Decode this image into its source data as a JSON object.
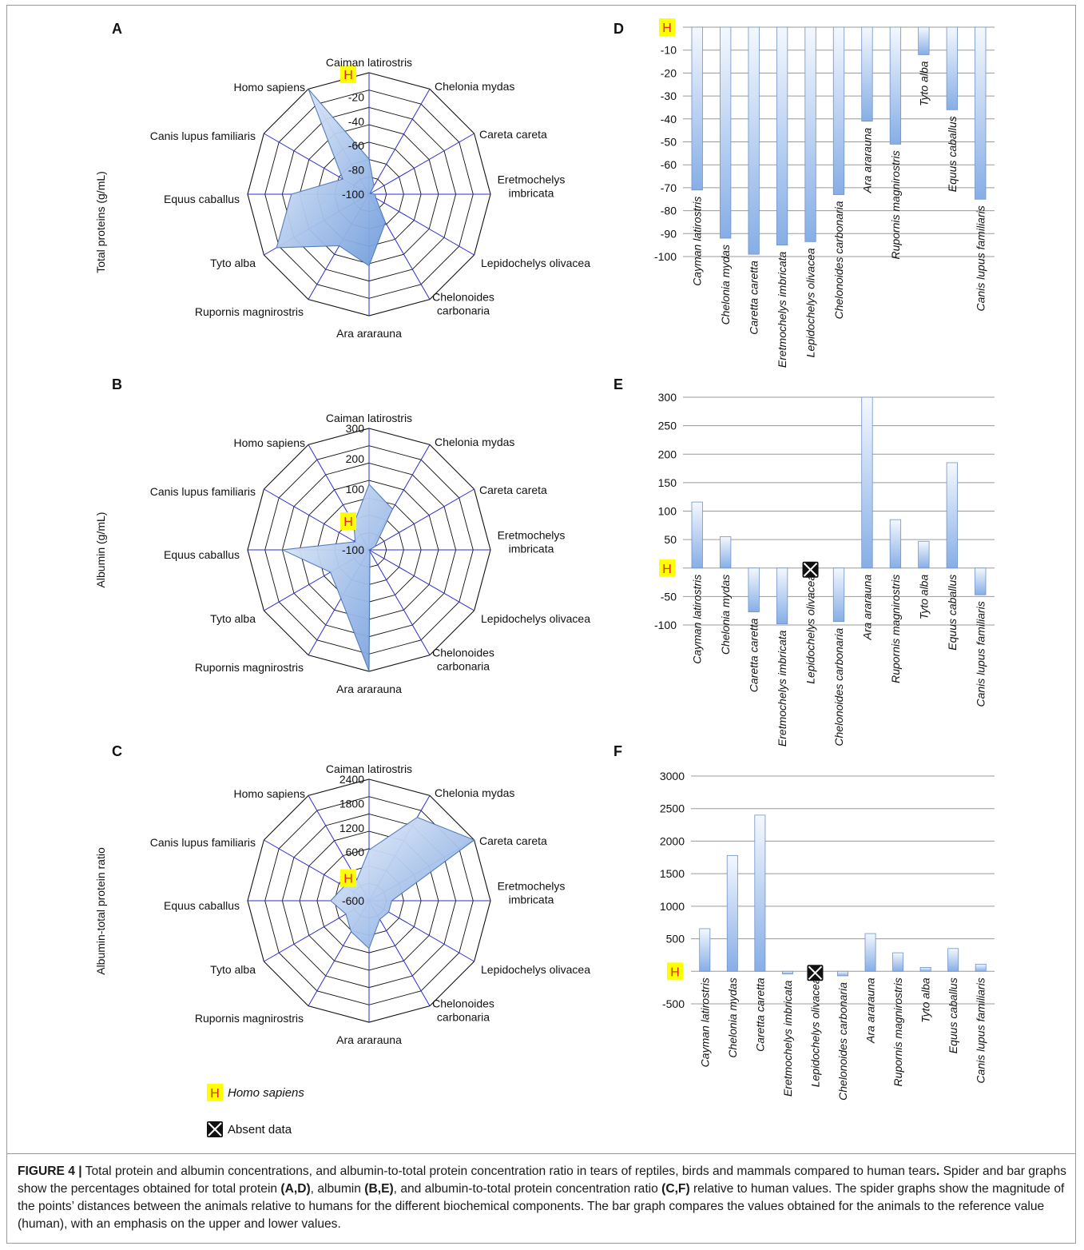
{
  "colors": {
    "spoke": "#2b2bd6",
    "ring": "#111111",
    "fill_light": "#e4eefb",
    "fill_dark": "#7aa3de",
    "bar_edge": "#6f93c8",
    "h_bg": "#ffff00",
    "h_text": "#e8232a",
    "grid": "#9a9a9a"
  },
  "h_symbol": "H",
  "legend": {
    "h_label": "Homo sapiens",
    "absent_label": "Absent data",
    "absent_icon": "x-box-icon"
  },
  "caption": {
    "figure_label": "FIGURE 4 |",
    "segments": [
      {
        "t": " Total protein and albumin concentrations, and albumin-to-total protein concentration ratio in tears of reptiles, birds and mammals compared to human tears",
        "b": false
      },
      {
        "t": ".",
        "b": true
      },
      {
        "t": " Spider and bar graphs show the percentages obtained for total protein ",
        "b": false
      },
      {
        "t": "(A,D)",
        "b": true
      },
      {
        "t": ", albumin ",
        "b": false
      },
      {
        "t": "(B,E)",
        "b": true
      },
      {
        "t": ", and albumin-to-total protein concentration ratio ",
        "b": false
      },
      {
        "t": "(C,F)",
        "b": true
      },
      {
        "t": " relative to human values. The spider graphs show the magnitude of the points’ distances between the animals relative to humans for the different biochemical components. The bar graph compares the values obtained for the animals to the reference value (human), with an emphasis on the upper and lower values.",
        "b": false
      }
    ]
  },
  "chart_data": [
    {
      "panel": "A",
      "type": "radar",
      "ylabel": "Total proteins (g/mL)",
      "categories": [
        "Caiman latirostris",
        "Chelonia mydas",
        "Careta careta",
        "Eretmochelys imbricata",
        "Lepidochelys olivacea",
        "Chelonoides carbonaria",
        "Ara ararauna",
        "Rupornis magnirostris",
        "Tyto alba",
        "Equus caballus",
        "Canis lupus familiaris",
        "Homo sapiens"
      ],
      "category_labels": [
        "Caiman latirostris",
        "Chelonia mydas",
        "Careta careta",
        "Eretmochelys\nimbricata",
        "Lepidochelys olivacea",
        "Chelonoides\ncarbonaria",
        "Ara ararauna",
        "Rupornis magnirostris",
        "Tyto alba",
        "Equus caballus",
        "Canis lupus familiaris",
        "Homo sapiens"
      ],
      "rlim": [
        -100,
        0
      ],
      "tick_labels": [
        "-100",
        "-80",
        "-60",
        "-40",
        "-20",
        "H"
      ],
      "values": [
        -71,
        -92,
        -99,
        -95,
        -93.5,
        -73,
        -41,
        -51,
        -12,
        -36,
        -75,
        0
      ]
    },
    {
      "panel": "B",
      "type": "radar",
      "ylabel": "Albumin (g/mL)",
      "categories": [
        "Caiman latirostris",
        "Chelonia mydas",
        "Careta careta",
        "Eretmochelys imbricata",
        "Lepidochelys olivacea",
        "Chelonoides carbonaria",
        "Ara ararauna",
        "Rupornis magnirostris",
        "Tyto alba",
        "Equus caballus",
        "Canis lupus familiaris",
        "Homo sapiens"
      ],
      "category_labels": [
        "Caiman latirostris",
        "Chelonia mydas",
        "Careta careta",
        "Eretmochelys\nimbricata",
        "Lepidochelys olivacea",
        "Chelonoides\ncarbonaria",
        "Ara ararauna",
        "Rupornis magnirostris",
        "Tyto alba",
        "Equus caballus",
        "Canis lupus familiaris",
        "Homo sapiens"
      ],
      "rlim": [
        -100,
        300
      ],
      "tick_labels": [
        "-100",
        "H",
        "100",
        "200",
        "300"
      ],
      "values": [
        116,
        55,
        -77,
        -98,
        -100,
        -94,
        300,
        85,
        47,
        185,
        -47,
        0
      ]
    },
    {
      "panel": "C",
      "type": "radar",
      "ylabel": "Albumin-total protein ratio",
      "categories": [
        "Caiman latirostris",
        "Chelonia mydas",
        "Careta careta",
        "Eretmochelys imbricata",
        "Lepidochelys olivacea",
        "Chelonoides carbonaria",
        "Ara ararauna",
        "Rupornis magnirostris",
        "Tyto alba",
        "Equus caballus",
        "Canis lupus familiaris",
        "Homo sapiens"
      ],
      "category_labels": [
        "Caiman latirostris",
        "Chelonia mydas",
        "Careta careta",
        "Eretmochelys\nimbricata",
        "Lepidochelys olivacea",
        "Chelonoides\ncarbonaria",
        "Ara ararauna",
        "Rupornis magnirostris",
        "Tyto alba",
        "Equus caballus",
        "Canis lupus familiaris",
        "Homo sapiens"
      ],
      "rlim": [
        -600,
        2400
      ],
      "tick_labels": [
        "-600",
        "H",
        "600",
        "1200",
        "1800",
        "2400"
      ],
      "values": [
        655,
        1780,
        2400,
        -40,
        -40,
        -70,
        580,
        285,
        60,
        350,
        110,
        0
      ]
    },
    {
      "panel": "D",
      "type": "bar",
      "categories": [
        "Cayman latirostris",
        "Chelonia mydas",
        "Caretta caretta",
        "Eretmochelys imbricata",
        "Lepidochelys olivacea",
        "Chelonoides carbonaria",
        "Ara ararauna",
        "Rupornis magnirostris",
        "Tyto alba",
        "Equus caballus",
        "Canis lupus familiaris"
      ],
      "values": [
        -71,
        -92,
        -99,
        -95,
        -93.5,
        -73,
        -41,
        -51,
        -12,
        -36,
        -75
      ],
      "ylim": [
        -100,
        0
      ],
      "yticks": [
        0,
        -10,
        -20,
        -30,
        -40,
        -50,
        -60,
        -70,
        -80,
        -90,
        -100
      ],
      "ytick_labels": [
        "H",
        "-10",
        "-20",
        "-30",
        "-40",
        "-50",
        "-60",
        "-70",
        "-80",
        "-90",
        "-100"
      ],
      "grid": true
    },
    {
      "panel": "E",
      "type": "bar",
      "categories": [
        "Cayman latirostris",
        "Chelonia mydas",
        "Caretta caretta",
        "Eretmochelys imbricata",
        "Lepidochelys olivacea",
        "Chelonoides carbonaria",
        "Ara ararauna",
        "Rupornis magnirostris",
        "Tyto alba",
        "Equus caballus",
        "Canis lupus familiaris"
      ],
      "values": [
        116,
        55,
        -77,
        -98,
        null,
        -94,
        300,
        85,
        47,
        185,
        -47
      ],
      "absent": [
        4
      ],
      "ylim": [
        -100,
        300
      ],
      "yticks": [
        300,
        250,
        200,
        150,
        100,
        50,
        0,
        -50,
        -100
      ],
      "ytick_labels": [
        "300",
        "250",
        "200",
        "150",
        "100",
        "50",
        "H",
        "-50",
        "-100"
      ],
      "grid": true
    },
    {
      "panel": "F",
      "type": "bar",
      "categories": [
        "Cayman latirostris",
        "Chelonia mydas",
        "Caretta caretta",
        "Eretmochelys imbricata",
        "Lepidochelys olivacea",
        "Chelonoides carbonaria",
        "Ara ararauna",
        "Rupornis magnirostris",
        "Tyto alba",
        "Equus caballus",
        "Canis lupus familiaris"
      ],
      "values": [
        655,
        1780,
        2400,
        -40,
        null,
        -70,
        580,
        285,
        60,
        350,
        110
      ],
      "absent": [
        4
      ],
      "ylim": [
        -500,
        3000
      ],
      "yticks": [
        3000,
        2500,
        2000,
        1500,
        1000,
        500,
        0,
        -500
      ],
      "ytick_labels": [
        "3000",
        "2500",
        "2000",
        "1500",
        "1000",
        "500",
        "H",
        "-500"
      ],
      "grid": true
    }
  ]
}
